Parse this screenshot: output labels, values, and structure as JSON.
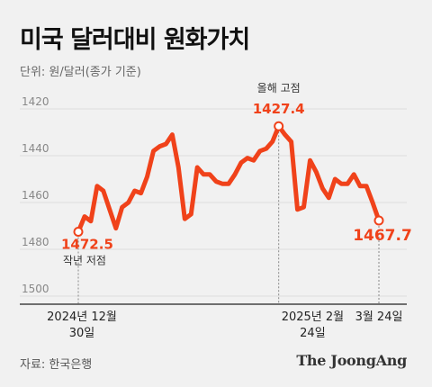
{
  "header": {
    "title": "미국 달러대비 원화가치",
    "unit_label": "단위: 원/달러(종가 기준)"
  },
  "footer": {
    "source": "자료: 한국은행",
    "brand": "The JoongAng"
  },
  "colors": {
    "line": "#f0421a",
    "background": "#f1f1f1",
    "grid": "#dddddd",
    "text": "#333333"
  },
  "chart_data": {
    "type": "line",
    "title": "미국 달러대비 원화가치",
    "ylabel": "단위: 원/달러(종가 기준)",
    "y_inverted": true,
    "ylim": [
      1420,
      1500
    ],
    "yticks": [
      1420,
      1440,
      1460,
      1480,
      1500
    ],
    "grid": true,
    "x_ticks": [
      {
        "label_lines": [
          "2024년 12월",
          "30일"
        ],
        "index": 0
      },
      {
        "label_lines": [
          "2025년 2월",
          "24일"
        ],
        "index": 38
      },
      {
        "label_lines": [
          "3월 24일"
        ],
        "index": 58
      }
    ],
    "series": [
      {
        "values": [
          1472.5,
          1466.0,
          1468.0,
          1453.0,
          1455.0,
          1463.0,
          1471.0,
          1462.0,
          1460.0,
          1455.0,
          1456.0,
          1449.0,
          1438.0,
          1436.0,
          1435.0,
          1431.0,
          1445.0,
          1467.0,
          1465.0,
          1445.0,
          1448.0,
          1448.0,
          1451.0,
          1452.0,
          1452.0,
          1448.0,
          1443.0,
          1441.0,
          1442.0,
          1438.0,
          1437.0,
          1434.0,
          1427.4,
          1431.0,
          1434.0,
          1463.0,
          1462.0,
          1442.0,
          1447.0,
          1454.0,
          1458.0,
          1450.0,
          1452.0,
          1452.0,
          1448.0,
          1453.0,
          1453.0,
          1460.0,
          1467.7
        ]
      }
    ],
    "annotations": [
      {
        "label": "작년 저점",
        "value": "1472.5",
        "index": 0
      },
      {
        "label": "올해 고점",
        "value": "1427.4",
        "index": 32
      },
      {
        "label": "",
        "value": "1467.7",
        "index": 48
      }
    ]
  }
}
